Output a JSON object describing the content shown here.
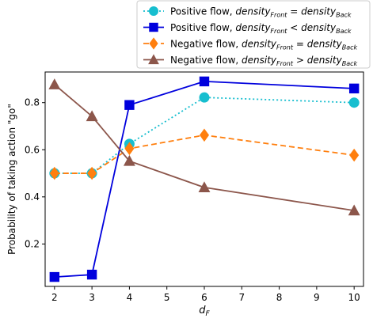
{
  "chart_data": {
    "type": "line",
    "title": "",
    "xlabel": "d_F",
    "ylabel": "Probability of taking action \"go\"",
    "xlim": [
      1.75,
      10.25
    ],
    "ylim": [
      0.02,
      0.93
    ],
    "x_ticks": [
      2,
      3,
      4,
      5,
      6,
      7,
      8,
      9,
      10
    ],
    "y_ticks": [
      0.2,
      0.4,
      0.6,
      0.8
    ],
    "grid": false,
    "legend_position": "top-right, outside plot area",
    "series": [
      {
        "name": "Positive flow, density_Front = density_Back",
        "color": "#17becf",
        "line_style": "dotted",
        "marker": "circle",
        "x": [
          2,
          3,
          4,
          6,
          10
        ],
        "y": [
          0.5,
          0.5,
          0.625,
          0.822,
          0.8
        ]
      },
      {
        "name": "Positive flow, density_Front < density_Back",
        "color": "#0000dd",
        "line_style": "solid",
        "marker": "square",
        "x": [
          2,
          3,
          4,
          6,
          10
        ],
        "y": [
          0.06,
          0.07,
          0.79,
          0.89,
          0.86
        ]
      },
      {
        "name": "Negative flow, density_Front = density_Back",
        "color": "#ff7f0e",
        "line_style": "dashed",
        "marker": "diamond",
        "x": [
          2,
          3,
          4,
          6,
          10
        ],
        "y": [
          0.5,
          0.5,
          0.605,
          0.662,
          0.577
        ]
      },
      {
        "name": "Negative flow, density_Front > density_Back",
        "color": "#8c564b",
        "line_style": "solid",
        "marker": "triangle",
        "x": [
          2,
          3,
          4,
          6,
          10
        ],
        "y": [
          0.877,
          0.742,
          0.552,
          0.44,
          0.342
        ]
      }
    ]
  },
  "legend_labels": [
    {
      "prefix": "Positive flow, ",
      "lhs": "density",
      "lhs_sub": "Front",
      "op": " = ",
      "rhs": "density",
      "rhs_sub": "Back"
    },
    {
      "prefix": "Positive flow, ",
      "lhs": "density",
      "lhs_sub": "Front",
      "op": " < ",
      "rhs": "density",
      "rhs_sub": "Back"
    },
    {
      "prefix": "Negative flow, ",
      "lhs": "density",
      "lhs_sub": "Front",
      "op": " = ",
      "rhs": "density",
      "rhs_sub": "Back"
    },
    {
      "prefix": "Negative flow, ",
      "lhs": "density",
      "lhs_sub": "Front",
      "op": " > ",
      "rhs": "density",
      "rhs_sub": "Back"
    }
  ],
  "xlabel_main": "d",
  "xlabel_sub": "F"
}
